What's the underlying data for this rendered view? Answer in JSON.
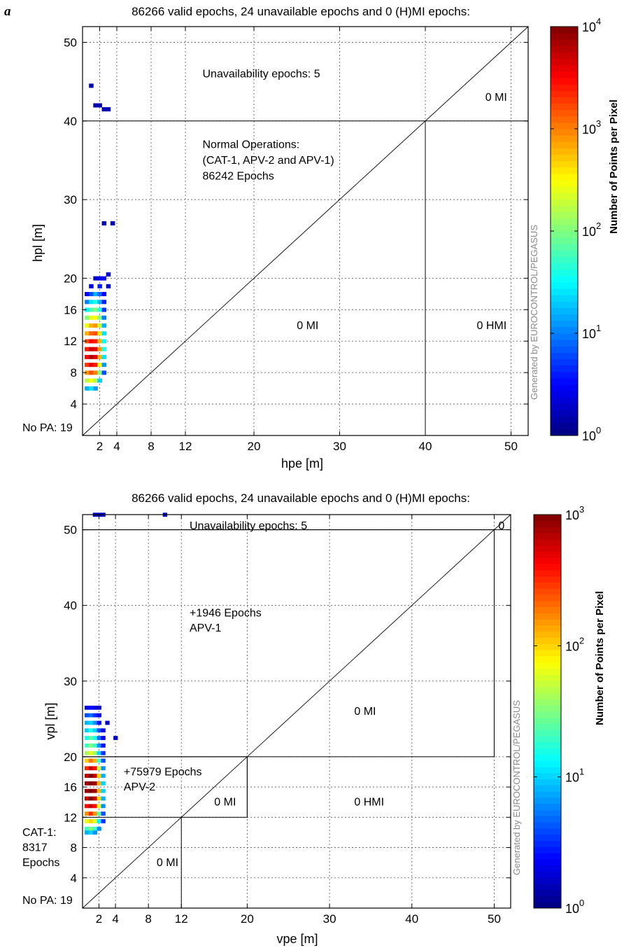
{
  "panel_label": "a",
  "colorbar_label": "Number of Points per Pixel",
  "watermark": "Generated by EUROCONTROL/PEGASUS",
  "chart_data": [
    {
      "type": "heatmap",
      "title": "86266 valid epochs, 24 unavailable epochs and 0 (H)MI epochs:",
      "xlabel": "hpe [m]",
      "ylabel": "hpl [m]",
      "xlim": [
        0,
        52
      ],
      "ylim": [
        0,
        52
      ],
      "grid": true,
      "x_ticks": [
        2,
        4,
        8,
        12,
        20,
        30,
        40,
        50
      ],
      "y_ticks": [
        4,
        8,
        12,
        16,
        20,
        30,
        40,
        50
      ],
      "colorbar": {
        "scale": "log",
        "min_exp": 0,
        "max_exp": 4,
        "tick_labels": [
          "10",
          "10",
          "10",
          "10",
          "10"
        ],
        "tick_exps": [
          "0",
          "1",
          "2",
          "3",
          "4"
        ]
      },
      "annotations": [
        {
          "text": "Unavailability epochs: 5",
          "x": 14,
          "y": 46
        },
        {
          "text": "0 MI",
          "x": 47,
          "y": 43
        },
        {
          "text": "Normal Operations:",
          "x": 14,
          "y": 37
        },
        {
          "text": "(CAT-1, APV-2 and APV-1)",
          "x": 14,
          "y": 35
        },
        {
          "text": "86242 Epochs",
          "x": 14,
          "y": 33
        },
        {
          "text": "0 MI",
          "x": 25,
          "y": 14
        },
        {
          "text": "0 HMI",
          "x": 46,
          "y": 14
        },
        {
          "text": "No PA: 19",
          "x": -10,
          "y": 1
        }
      ],
      "regions": [
        {
          "kind": "hline",
          "y": 40,
          "x0": 0,
          "x1": 52
        },
        {
          "kind": "vline",
          "x": 40,
          "y0": 0,
          "y1": 40
        },
        {
          "kind": "diagonal"
        }
      ],
      "density": {
        "cell": 0.5,
        "cells": [
          [
            1.0,
            44.5,
            0.2
          ],
          [
            1.5,
            42,
            0.2
          ],
          [
            2.0,
            42,
            0.2
          ],
          [
            2.5,
            41.5,
            0.2
          ],
          [
            3.0,
            41.5,
            0.2
          ],
          [
            2.5,
            27,
            0.2
          ],
          [
            3.5,
            27,
            0.2
          ],
          [
            1.5,
            20,
            0.3
          ],
          [
            2.0,
            20,
            0.4
          ],
          [
            2.5,
            20,
            0.5
          ],
          [
            3.0,
            20.5,
            0.3
          ],
          [
            1.0,
            19,
            0.4
          ],
          [
            2.0,
            19,
            0.6
          ],
          [
            3.0,
            19,
            0.3
          ],
          [
            0.5,
            18,
            0.5
          ],
          [
            1.0,
            18,
            0.8
          ],
          [
            1.5,
            18,
            1.2
          ],
          [
            2.0,
            18,
            0.9
          ],
          [
            2.5,
            18,
            0.5
          ],
          [
            0.5,
            17,
            1.0
          ],
          [
            1.0,
            17,
            1.4
          ],
          [
            1.5,
            17,
            1.6
          ],
          [
            2.0,
            17,
            1.2
          ],
          [
            2.5,
            17,
            0.6
          ],
          [
            0.5,
            16,
            1.5
          ],
          [
            1.0,
            16,
            1.8
          ],
          [
            1.5,
            16,
            2.0
          ],
          [
            2.0,
            16,
            1.6
          ],
          [
            2.5,
            16,
            0.7
          ],
          [
            0.5,
            15,
            2.0
          ],
          [
            1.0,
            15,
            2.4
          ],
          [
            1.5,
            15,
            2.5
          ],
          [
            2.0,
            15,
            2.0
          ],
          [
            2.5,
            15,
            1.0
          ],
          [
            0.5,
            14,
            2.4
          ],
          [
            1.0,
            14,
            2.8
          ],
          [
            1.5,
            14,
            2.9
          ],
          [
            2.0,
            14,
            2.3
          ],
          [
            2.5,
            14,
            1.2
          ],
          [
            0.5,
            13,
            2.8
          ],
          [
            1.0,
            13,
            3.1
          ],
          [
            1.5,
            13,
            3.2
          ],
          [
            2.0,
            13,
            2.6
          ],
          [
            2.5,
            13,
            1.4
          ],
          [
            0.5,
            12,
            3.2
          ],
          [
            1.0,
            12,
            3.5
          ],
          [
            1.5,
            12,
            3.4
          ],
          [
            2.0,
            12,
            2.8
          ],
          [
            2.5,
            12,
            1.5
          ],
          [
            0.5,
            11,
            3.4
          ],
          [
            1.0,
            11,
            3.7
          ],
          [
            1.5,
            11,
            3.6
          ],
          [
            2.0,
            11,
            2.9
          ],
          [
            2.5,
            11,
            1.6
          ],
          [
            0.5,
            10,
            3.5
          ],
          [
            1.0,
            10,
            3.8
          ],
          [
            1.5,
            10,
            3.6
          ],
          [
            2.0,
            10,
            2.8
          ],
          [
            2.5,
            10,
            1.4
          ],
          [
            0.5,
            9,
            3.3
          ],
          [
            1.0,
            9,
            3.6
          ],
          [
            1.5,
            9,
            3.4
          ],
          [
            2.0,
            9,
            2.5
          ],
          [
            2.5,
            9,
            1.1
          ],
          [
            0.5,
            8,
            2.9
          ],
          [
            1.0,
            8,
            3.2
          ],
          [
            1.5,
            8,
            3.0
          ],
          [
            2.0,
            8,
            2.0
          ],
          [
            2.5,
            8,
            0.8
          ],
          [
            0.5,
            7,
            2.2
          ],
          [
            1.0,
            7,
            2.5
          ],
          [
            1.5,
            7,
            2.2
          ],
          [
            2.0,
            7,
            1.3
          ],
          [
            0.5,
            6,
            1.2
          ],
          [
            1.0,
            6,
            1.4
          ],
          [
            1.5,
            6,
            1.1
          ]
        ]
      }
    },
    {
      "type": "heatmap",
      "title": "86266 valid epochs, 24 unavailable epochs and 0 (H)MI epochs:",
      "xlabel": "vpe [m]",
      "ylabel": "vpl [m]",
      "xlim": [
        0,
        52
      ],
      "ylim": [
        0,
        52
      ],
      "grid": true,
      "x_ticks": [
        2,
        4,
        8,
        12,
        20,
        30,
        40,
        50
      ],
      "y_ticks": [
        4,
        8,
        12,
        16,
        20,
        30,
        40,
        50
      ],
      "colorbar": {
        "scale": "log",
        "min_exp": 0,
        "max_exp": 3,
        "tick_labels": [
          "10",
          "10",
          "10",
          "10"
        ],
        "tick_exps": [
          "0",
          "1",
          "2",
          "3"
        ]
      },
      "annotations": [
        {
          "text": "Unavailability epochs: 5",
          "x": 13,
          "y": 50.5
        },
        {
          "text": "0",
          "x": 50.5,
          "y": 50.5
        },
        {
          "text": "+1946 Epochs",
          "x": 13,
          "y": 39
        },
        {
          "text": "APV-1",
          "x": 13,
          "y": 37
        },
        {
          "text": "0 MI",
          "x": 33,
          "y": 26
        },
        {
          "text": "+75979 Epochs",
          "x": 5,
          "y": 18
        },
        {
          "text": "APV-2",
          "x": 5,
          "y": 16
        },
        {
          "text": "0 MI",
          "x": 16,
          "y": 14
        },
        {
          "text": "0 HMI",
          "x": 33,
          "y": 14
        },
        {
          "text": "CAT-1:",
          "x": -8,
          "y": 10
        },
        {
          "text": "8317",
          "x": -8,
          "y": 8
        },
        {
          "text": "Epochs",
          "x": -8,
          "y": 6
        },
        {
          "text": "0 MI",
          "x": 9,
          "y": 6
        },
        {
          "text": "No PA: 19",
          "x": -8,
          "y": 1
        }
      ],
      "regions": [
        {
          "kind": "rect",
          "x0": 0,
          "y0": 12,
          "x1": 20,
          "y1": 20
        },
        {
          "kind": "rect",
          "x0": 0,
          "y0": 20,
          "x1": 50,
          "y1": 50
        },
        {
          "kind": "hline",
          "y": 50,
          "x0": 0,
          "x1": 52
        },
        {
          "kind": "vline",
          "x": 20,
          "y0": 12,
          "y1": 20
        },
        {
          "kind": "vline",
          "x": 12,
          "y0": 0,
          "y1": 12
        },
        {
          "kind": "vline",
          "x": 50,
          "y0": 20,
          "y1": 50
        },
        {
          "kind": "diagonal"
        }
      ],
      "density": {
        "cell": 0.5,
        "cells": [
          [
            1.5,
            52,
            0.2
          ],
          [
            2.0,
            52,
            0.2
          ],
          [
            2.5,
            52,
            0.2
          ],
          [
            10.0,
            52,
            0.2
          ],
          [
            0.5,
            26.5,
            0.3
          ],
          [
            1.0,
            26.5,
            0.4
          ],
          [
            1.5,
            26.5,
            0.3
          ],
          [
            2.0,
            26.5,
            0.2
          ],
          [
            0.5,
            25.5,
            0.6
          ],
          [
            1.0,
            25.5,
            0.7
          ],
          [
            1.5,
            25.5,
            0.5
          ],
          [
            2.0,
            25.5,
            0.3
          ],
          [
            0.5,
            24.5,
            0.9
          ],
          [
            1.0,
            24.5,
            1.0
          ],
          [
            1.5,
            24.5,
            0.8
          ],
          [
            2.0,
            24.5,
            0.4
          ],
          [
            3.0,
            24.5,
            0.2
          ],
          [
            0.5,
            23.5,
            1.0
          ],
          [
            1.0,
            23.5,
            1.2
          ],
          [
            1.5,
            23.5,
            1.0
          ],
          [
            2.0,
            23.5,
            0.6
          ],
          [
            2.5,
            23.5,
            0.3
          ],
          [
            0.5,
            22.5,
            1.2
          ],
          [
            1.0,
            22.5,
            1.4
          ],
          [
            1.5,
            22.5,
            1.2
          ],
          [
            2.0,
            22.5,
            0.7
          ],
          [
            2.5,
            22.5,
            0.3
          ],
          [
            4.0,
            22.5,
            0.2
          ],
          [
            0.5,
            21.5,
            1.3
          ],
          [
            1.0,
            21.5,
            1.5
          ],
          [
            1.5,
            21.5,
            1.3
          ],
          [
            2.0,
            21.5,
            0.8
          ],
          [
            2.5,
            21.5,
            0.4
          ],
          [
            0.5,
            20.5,
            1.6
          ],
          [
            1.0,
            20.5,
            1.8
          ],
          [
            1.5,
            20.5,
            1.6
          ],
          [
            2.0,
            20.5,
            1.0
          ],
          [
            2.5,
            20.5,
            0.5
          ],
          [
            0.5,
            19.5,
            2.0
          ],
          [
            1.0,
            19.5,
            2.3
          ],
          [
            1.5,
            19.5,
            2.1
          ],
          [
            2.0,
            19.5,
            1.3
          ],
          [
            2.5,
            19.5,
            0.6
          ],
          [
            0.5,
            18.5,
            2.5
          ],
          [
            1.0,
            18.5,
            2.8
          ],
          [
            1.5,
            18.5,
            2.6
          ],
          [
            2.0,
            18.5,
            1.7
          ],
          [
            2.5,
            18.5,
            0.8
          ],
          [
            0.5,
            17.5,
            2.8
          ],
          [
            1.0,
            17.5,
            3.0
          ],
          [
            1.5,
            17.5,
            2.8
          ],
          [
            2.0,
            17.5,
            2.0
          ],
          [
            2.5,
            17.5,
            0.9
          ],
          [
            0.5,
            16.5,
            2.9
          ],
          [
            1.0,
            16.5,
            3.0
          ],
          [
            1.5,
            16.5,
            2.9
          ],
          [
            2.0,
            16.5,
            2.1
          ],
          [
            2.5,
            16.5,
            1.0
          ],
          [
            0.5,
            15.5,
            2.9
          ],
          [
            1.0,
            15.5,
            3.0
          ],
          [
            1.5,
            15.5,
            2.9
          ],
          [
            2.0,
            15.5,
            2.1
          ],
          [
            2.5,
            15.5,
            1.0
          ],
          [
            0.5,
            14.5,
            2.8
          ],
          [
            1.0,
            14.5,
            3.0
          ],
          [
            1.5,
            14.5,
            2.8
          ],
          [
            2.0,
            14.5,
            2.0
          ],
          [
            2.5,
            14.5,
            0.9
          ],
          [
            0.5,
            13.5,
            2.6
          ],
          [
            1.0,
            13.5,
            2.8
          ],
          [
            1.5,
            13.5,
            2.6
          ],
          [
            2.0,
            13.5,
            1.8
          ],
          [
            2.5,
            13.5,
            0.8
          ],
          [
            0.5,
            12.5,
            2.2
          ],
          [
            1.0,
            12.5,
            2.5
          ],
          [
            1.5,
            12.5,
            2.2
          ],
          [
            2.0,
            12.5,
            1.4
          ],
          [
            2.5,
            12.5,
            0.6
          ],
          [
            0.5,
            11.5,
            1.8
          ],
          [
            1.0,
            11.5,
            2.0
          ],
          [
            1.5,
            11.5,
            1.8
          ],
          [
            2.0,
            11.5,
            1.1
          ],
          [
            2.5,
            11.5,
            0.5
          ],
          [
            0.5,
            10.5,
            1.3
          ],
          [
            1.0,
            10.5,
            1.5
          ],
          [
            1.5,
            10.5,
            1.3
          ],
          [
            2.0,
            10.5,
            0.8
          ],
          [
            0.5,
            10.0,
            0.9
          ],
          [
            1.0,
            10.0,
            1.0
          ],
          [
            1.5,
            10.0,
            0.8
          ]
        ]
      }
    }
  ]
}
